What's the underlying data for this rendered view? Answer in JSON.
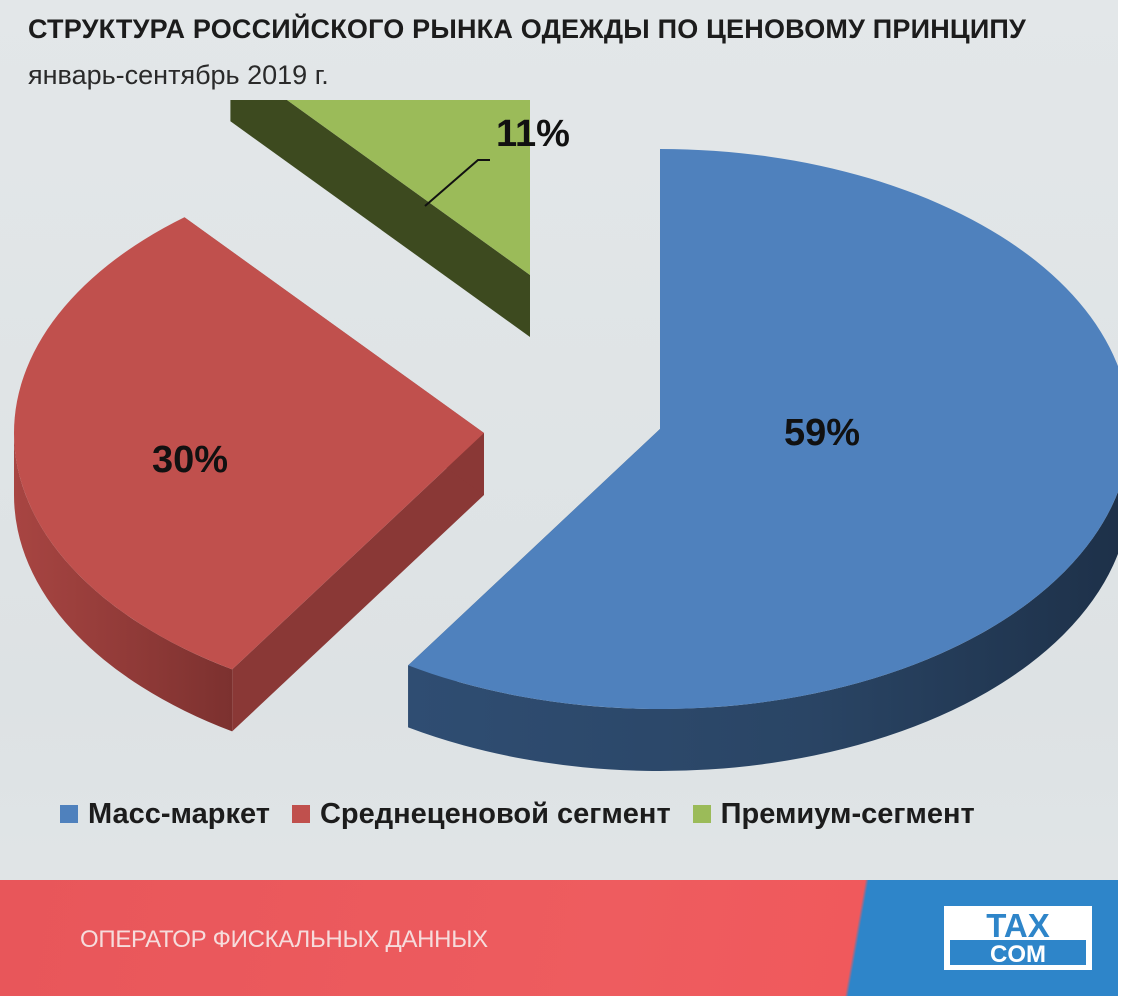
{
  "title": "СТРУКТУРА РОССИЙСКОГО РЫНКА ОДЕЖДЫ ПО ЦЕНОВОМУ ПРИНЦИПУ",
  "subtitle": "январь-сентябрь 2019 г.",
  "chart_data": {
    "type": "pie",
    "style": "3d-exploded",
    "title": "СТРУКТУРА РОССИЙСКОГО РЫНКА ОДЕЖДЫ ПО ЦЕНОВОМУ ПРИНЦИПУ",
    "subtitle": "январь-сентябрь 2019 г.",
    "legend_position": "bottom",
    "slices": [
      {
        "name": "Масс-маркет",
        "value": 59,
        "label": "59%",
        "color": "#4f81bd"
      },
      {
        "name": "Среднеценовой сегмент",
        "value": 30,
        "label": "30%",
        "color": "#c0504d"
      },
      {
        "name": "Премиум-сегмент",
        "value": 11,
        "label": "11%",
        "color": "#9bbb59"
      }
    ]
  },
  "footer": {
    "text": "ОПЕРАТОР ФИСКАЛЬНЫХ ДАННЫХ",
    "logo_top": "TAX",
    "logo_bottom": "COM"
  }
}
